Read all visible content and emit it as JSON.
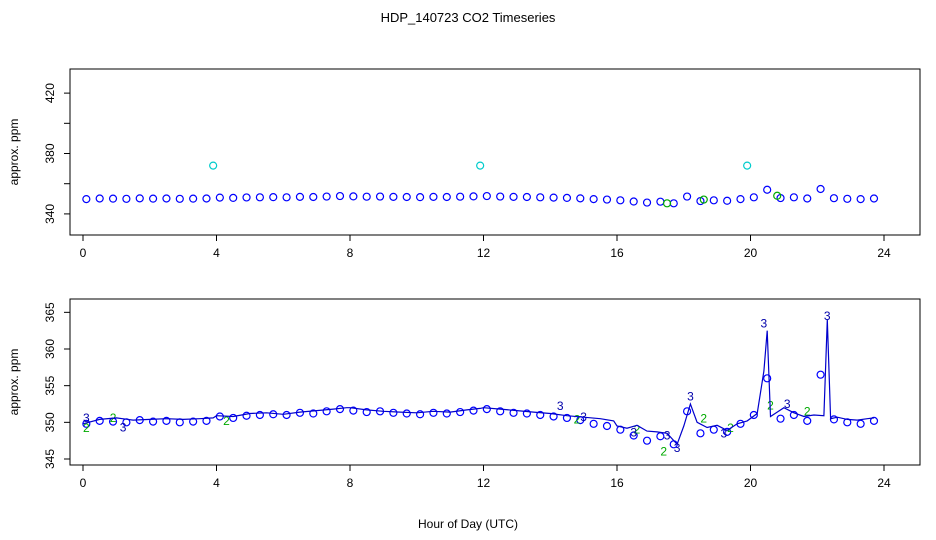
{
  "figure": {
    "title": "HDP_140723  CO2 Timeseries",
    "xlabel": "Hour of Day (UTC)"
  },
  "chart_data": [
    {
      "type": "scatter",
      "title": "",
      "xlabel": "",
      "ylabel": "approx. ppm",
      "xlim": [
        0,
        24
      ],
      "ylim": [
        330,
        432
      ],
      "xticks": [
        0,
        4,
        8,
        12,
        16,
        20,
        24
      ],
      "yticks": [
        340,
        360,
        380,
        400,
        420
      ],
      "ytick_labels": [
        "340",
        "",
        "380",
        "",
        "420"
      ],
      "grid": false,
      "legend": "none",
      "series": [
        {
          "marker": "circle",
          "color": "#0000ff",
          "x": [
            0.1,
            0.5,
            0.9,
            1.3,
            1.7,
            2.1,
            2.5,
            2.9,
            3.3,
            3.7,
            4.1,
            4.5,
            4.9,
            5.3,
            5.7,
            6.1,
            6.5,
            6.9,
            7.3,
            7.7,
            8.1,
            8.5,
            8.9,
            9.3,
            9.7,
            10.1,
            10.5,
            10.9,
            11.3,
            11.7,
            12.1,
            12.5,
            12.9,
            13.3,
            13.7,
            14.1,
            14.5,
            14.9,
            15.3,
            15.7,
            16.1,
            16.5,
            16.9,
            17.3,
            17.7,
            18.1,
            18.5,
            18.9,
            19.3,
            19.7,
            20.1,
            20.5,
            20.9,
            21.3,
            21.7,
            22.1,
            22.5,
            22.9,
            23.3,
            23.7
          ],
          "y": [
            349.8,
            350.2,
            350.1,
            350.0,
            350.3,
            350.1,
            350.2,
            350.0,
            350.1,
            350.2,
            350.8,
            350.6,
            350.9,
            351.0,
            351.1,
            351.0,
            351.3,
            351.2,
            351.5,
            351.8,
            351.6,
            351.4,
            351.5,
            351.3,
            351.2,
            351.1,
            351.3,
            351.2,
            351.4,
            351.6,
            351.8,
            351.5,
            351.3,
            351.2,
            351.0,
            350.8,
            350.6,
            350.3,
            349.8,
            349.5,
            349.0,
            348.2,
            347.5,
            348.1,
            347.0,
            351.5,
            348.5,
            349.0,
            348.7,
            349.8,
            351.0,
            356.0,
            350.5,
            351.0,
            350.2,
            356.5,
            350.4,
            350.0,
            349.8,
            350.2
          ]
        },
        {
          "marker": "circle",
          "color": "#00cccc",
          "x": [
            3.9,
            11.9,
            19.9
          ],
          "y": [
            372,
            372,
            372
          ]
        },
        {
          "marker": "circle",
          "color": "#00aa00",
          "x": [
            17.5,
            18.6,
            20.8
          ],
          "y": [
            347,
            349.5,
            352
          ]
        }
      ]
    },
    {
      "type": "scatter",
      "title": "",
      "xlabel": "",
      "ylabel": "approx. ppm",
      "xlim": [
        0,
        24
      ],
      "ylim": [
        345,
        366
      ],
      "xticks": [
        0,
        4,
        8,
        12,
        16,
        20,
        24
      ],
      "yticks": [
        345,
        350,
        355,
        360,
        365
      ],
      "grid": false,
      "legend": "none",
      "series": [
        {
          "marker": "circle",
          "color": "#0000ff",
          "x": [
            0.1,
            0.5,
            0.9,
            1.3,
            1.7,
            2.1,
            2.5,
            2.9,
            3.3,
            3.7,
            4.1,
            4.5,
            4.9,
            5.3,
            5.7,
            6.1,
            6.5,
            6.9,
            7.3,
            7.7,
            8.1,
            8.5,
            8.9,
            9.3,
            9.7,
            10.1,
            10.5,
            10.9,
            11.3,
            11.7,
            12.1,
            12.5,
            12.9,
            13.3,
            13.7,
            14.1,
            14.5,
            14.9,
            15.3,
            15.7,
            16.1,
            16.5,
            16.9,
            17.3,
            17.7,
            18.1,
            18.5,
            18.9,
            19.3,
            19.7,
            20.1,
            20.5,
            20.9,
            21.3,
            21.7,
            22.1,
            22.5,
            22.9,
            23.3,
            23.7
          ],
          "y": [
            349.8,
            350.2,
            350.1,
            350.0,
            350.3,
            350.1,
            350.2,
            350.0,
            350.1,
            350.2,
            350.8,
            350.6,
            350.9,
            351.0,
            351.1,
            351.0,
            351.3,
            351.2,
            351.5,
            351.8,
            351.6,
            351.4,
            351.5,
            351.3,
            351.2,
            351.1,
            351.3,
            351.2,
            351.4,
            351.6,
            351.8,
            351.5,
            351.3,
            351.2,
            351.0,
            350.8,
            350.6,
            350.3,
            349.8,
            349.5,
            349.0,
            348.2,
            347.5,
            348.1,
            347.0,
            351.5,
            348.5,
            349.0,
            348.7,
            349.8,
            351.0,
            356.0,
            350.5,
            351.0,
            350.2,
            356.5,
            350.4,
            350.0,
            349.8,
            350.2
          ]
        },
        {
          "marker": "label",
          "color": "#00aa00",
          "label": "2",
          "x": [
            0.1,
            0.9,
            4.3,
            14.8,
            16.6,
            17.4,
            18.6,
            19.4,
            20.6,
            21.7
          ],
          "y": [
            349.2,
            350.6,
            350.2,
            350.4,
            349.0,
            346.0,
            350.5,
            349.2,
            352.3,
            351.5
          ]
        },
        {
          "marker": "label",
          "color": "#0000aa",
          "label": "3",
          "x": [
            0.1,
            1.2,
            14.3,
            15.0,
            16.5,
            17.5,
            17.8,
            18.2,
            19.2,
            20.4,
            21.1,
            22.3
          ],
          "y": [
            350.6,
            349.3,
            352.2,
            350.7,
            348.6,
            348.2,
            346.5,
            353.5,
            348.5,
            363.5,
            352.5,
            364.5
          ]
        },
        {
          "marker": "line",
          "color": "#0000cc",
          "x": [
            0.0,
            0.5,
            1.0,
            1.5,
            2.0,
            2.5,
            3.0,
            3.5,
            3.9,
            4.0,
            4.5,
            5.0,
            5.5,
            6.0,
            6.5,
            7.0,
            7.5,
            7.9,
            8.0,
            8.5,
            9.0,
            9.5,
            10.0,
            10.5,
            11.0,
            11.5,
            11.9,
            12.0,
            12.5,
            13.0,
            13.5,
            14.0,
            14.5,
            15.0,
            15.5,
            15.9,
            16.0,
            16.3,
            16.6,
            16.9,
            17.2,
            17.5,
            17.8,
            18.0,
            18.2,
            18.4,
            18.7,
            19.0,
            19.3,
            19.6,
            19.9,
            20.2,
            20.4,
            20.5,
            20.6,
            20.8,
            21.0,
            21.3,
            21.6,
            21.9,
            22.2,
            22.3,
            22.4,
            22.6,
            22.9,
            23.2,
            23.5,
            23.7
          ],
          "y": [
            349.8,
            350.4,
            350.6,
            350.3,
            350.4,
            350.5,
            350.4,
            350.5,
            350.6,
            350.9,
            350.8,
            351.2,
            351.3,
            351.1,
            351.4,
            351.6,
            351.8,
            352.0,
            352.0,
            351.7,
            351.5,
            351.4,
            351.3,
            351.5,
            351.4,
            351.7,
            351.9,
            352.0,
            351.8,
            351.6,
            351.4,
            351.2,
            350.9,
            350.7,
            350.5,
            350.2,
            349.5,
            349.2,
            349.6,
            348.8,
            348.7,
            348.5,
            347.0,
            349.5,
            352.5,
            350.0,
            349.3,
            349.6,
            348.9,
            349.8,
            350.2,
            351.2,
            357.0,
            362.5,
            350.8,
            351.4,
            352.0,
            351.3,
            350.8,
            351.0,
            350.9,
            364.0,
            350.5,
            350.7,
            350.4,
            350.3,
            350.5,
            350.6
          ]
        }
      ]
    }
  ]
}
